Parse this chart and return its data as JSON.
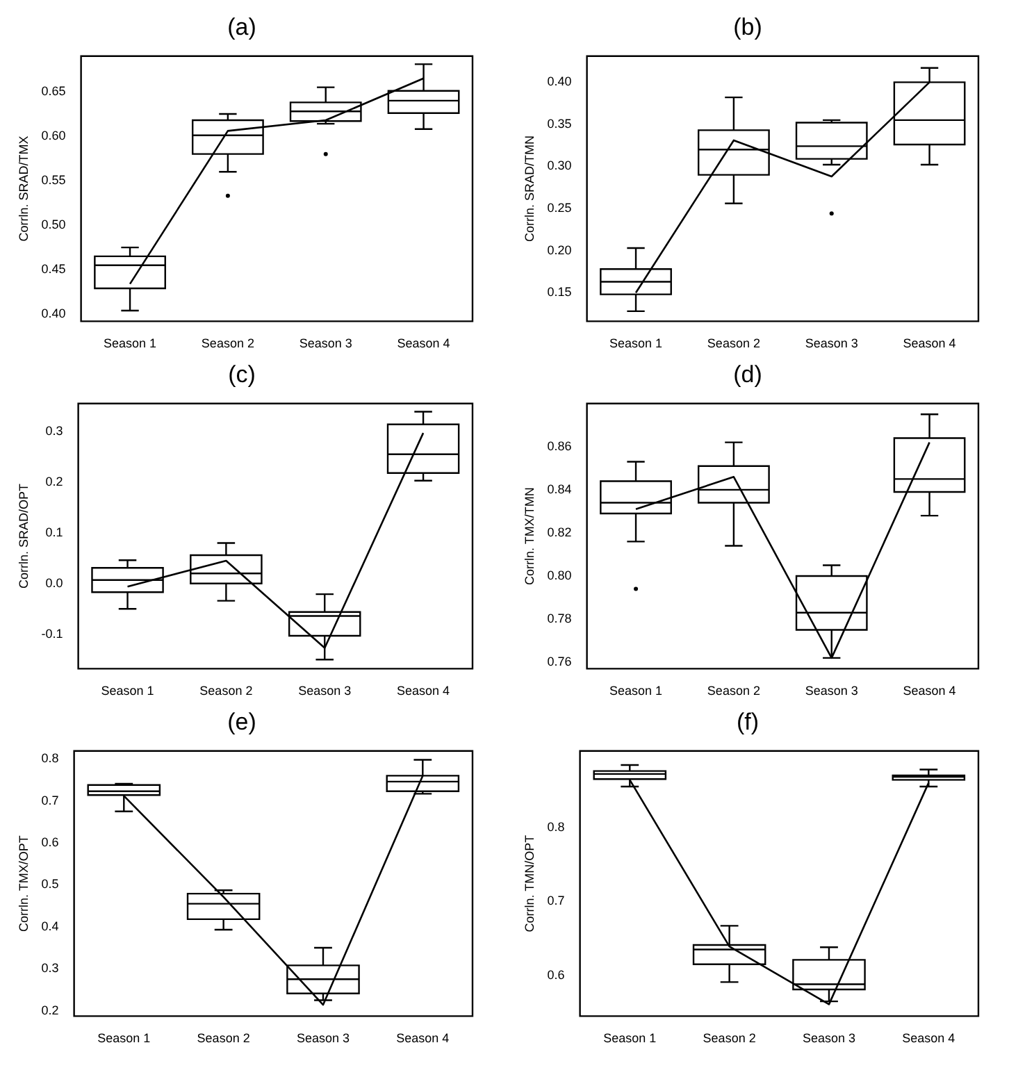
{
  "chart_data": [
    {
      "type": "box",
      "title": "(a)",
      "ylabel": "Corrln. SRAD/TMX",
      "categories": [
        "Season 1",
        "Season 2",
        "Season 3",
        "Season 4"
      ],
      "ylim": [
        0.392,
        0.69
      ],
      "yticks": [
        {
          "value": 0.4,
          "label": "0.40"
        },
        {
          "value": 0.45,
          "label": "0.45"
        },
        {
          "value": 0.5,
          "label": "0.50"
        },
        {
          "value": 0.55,
          "label": "0.55"
        },
        {
          "value": 0.6,
          "label": "0.60"
        },
        {
          "value": 0.65,
          "label": "0.65"
        }
      ],
      "series": [
        {
          "type": "box",
          "color": "#000000",
          "boxes": [
            {
              "low": 0.404,
              "q1": 0.429,
              "median": 0.455,
              "q3": 0.465,
              "high": 0.475
            },
            {
              "low": 0.56,
              "q1": 0.58,
              "median": 0.601,
              "q3": 0.618,
              "high": 0.625,
              "outliers": [
                0.533
              ]
            },
            {
              "low": 0.614,
              "q1": 0.617,
              "median": 0.628,
              "q3": 0.638,
              "high": 0.655,
              "outliers": [
                0.58
              ]
            },
            {
              "low": 0.608,
              "q1": 0.626,
              "median": 0.64,
              "q3": 0.651,
              "high": 0.681
            }
          ]
        },
        {
          "type": "line",
          "color": "#000000",
          "values": [
            0.434,
            0.606,
            0.618,
            0.665
          ]
        }
      ]
    },
    {
      "type": "box",
      "title": "(b)",
      "ylabel": "Corrln. SRAD/TMN",
      "categories": [
        "Season 1",
        "Season 2",
        "Season 3",
        "Season 4"
      ],
      "ylim": [
        0.116,
        0.431
      ],
      "yticks": [
        {
          "value": 0.15,
          "label": "0.15"
        },
        {
          "value": 0.2,
          "label": "0.20"
        },
        {
          "value": 0.25,
          "label": "0.25"
        },
        {
          "value": 0.3,
          "label": "0.30"
        },
        {
          "value": 0.35,
          "label": "0.35"
        },
        {
          "value": 0.4,
          "label": "0.40"
        }
      ],
      "series": [
        {
          "type": "box",
          "color": "#000000",
          "boxes": [
            {
              "low": 0.128,
              "q1": 0.148,
              "median": 0.163,
              "q3": 0.178,
              "high": 0.203
            },
            {
              "low": 0.256,
              "q1": 0.29,
              "median": 0.32,
              "q3": 0.343,
              "high": 0.382
            },
            {
              "low": 0.302,
              "q1": 0.309,
              "median": 0.324,
              "q3": 0.352,
              "high": 0.355,
              "outliers": [
                0.244
              ]
            },
            {
              "low": 0.302,
              "q1": 0.326,
              "median": 0.355,
              "q3": 0.4,
              "high": 0.417
            }
          ]
        },
        {
          "type": "line",
          "color": "#000000",
          "values": [
            0.15,
            0.331,
            0.288,
            0.4
          ]
        }
      ]
    },
    {
      "type": "box",
      "title": "(c)",
      "ylabel": "Corrln. SRAD/OPT",
      "categories": [
        "Season 1",
        "Season 2",
        "Season 3",
        "Season 4"
      ],
      "ylim": [
        -0.168,
        0.355
      ],
      "yticks": [
        {
          "value": -0.1,
          "label": "-0.1"
        },
        {
          "value": 0,
          "label": "0.0"
        },
        {
          "value": 0.1,
          "label": "0.1"
        },
        {
          "value": 0.2,
          "label": "0.2"
        },
        {
          "value": 0.3,
          "label": "0.3"
        }
      ],
      "series": [
        {
          "type": "box",
          "color": "#000000",
          "boxes": [
            {
              "low": -0.05,
              "q1": -0.017,
              "median": 0.007,
              "q3": 0.031,
              "high": 0.046
            },
            {
              "low": -0.034,
              "q1": 0,
              "median": 0.02,
              "q3": 0.056,
              "high": 0.08
            },
            {
              "low": -0.15,
              "q1": -0.103,
              "median": -0.064,
              "q3": -0.056,
              "high": -0.021
            },
            {
              "low": 0.203,
              "q1": 0.218,
              "median": 0.255,
              "q3": 0.314,
              "high": 0.339
            }
          ]
        },
        {
          "type": "line",
          "color": "#000000",
          "values": [
            -0.006,
            0.045,
            -0.127,
            0.297
          ]
        }
      ]
    },
    {
      "type": "box",
      "title": "(d)",
      "ylabel": "Corrln. TMX/TMN",
      "categories": [
        "Season 1",
        "Season 2",
        "Season 3",
        "Season 4"
      ],
      "ylim": [
        0.757,
        0.88
      ],
      "yticks": [
        {
          "value": 0.76,
          "label": "0.76"
        },
        {
          "value": 0.78,
          "label": "0.78"
        },
        {
          "value": 0.8,
          "label": "0.80"
        },
        {
          "value": 0.82,
          "label": "0.82"
        },
        {
          "value": 0.84,
          "label": "0.84"
        },
        {
          "value": 0.86,
          "label": "0.86"
        }
      ],
      "series": [
        {
          "type": "box",
          "color": "#000000",
          "boxes": [
            {
              "low": 0.816,
              "q1": 0.829,
              "median": 0.834,
              "q3": 0.844,
              "high": 0.853,
              "outliers": [
                0.794
              ]
            },
            {
              "low": 0.814,
              "q1": 0.834,
              "median": 0.84,
              "q3": 0.851,
              "high": 0.862
            },
            {
              "low": 0.762,
              "q1": 0.775,
              "median": 0.783,
              "q3": 0.8,
              "high": 0.805
            },
            {
              "low": 0.828,
              "q1": 0.839,
              "median": 0.845,
              "q3": 0.864,
              "high": 0.875
            }
          ]
        },
        {
          "type": "line",
          "color": "#000000",
          "values": [
            0.831,
            0.846,
            0.762,
            0.862
          ]
        }
      ]
    },
    {
      "type": "box",
      "title": "(e)",
      "ylabel": "Corrln. TMX/OPT",
      "categories": [
        "Season 1",
        "Season 2",
        "Season 3",
        "Season 4"
      ],
      "ylim": [
        0.187,
        0.819
      ],
      "yticks": [
        {
          "value": 0.2,
          "label": "0.2"
        },
        {
          "value": 0.3,
          "label": "0.3"
        },
        {
          "value": 0.4,
          "label": "0.4"
        },
        {
          "value": 0.5,
          "label": "0.5"
        },
        {
          "value": 0.6,
          "label": "0.6"
        },
        {
          "value": 0.7,
          "label": "0.7"
        },
        {
          "value": 0.8,
          "label": "0.8"
        }
      ],
      "series": [
        {
          "type": "box",
          "color": "#000000",
          "boxes": [
            {
              "low": 0.675,
              "q1": 0.714,
              "median": 0.723,
              "q3": 0.738,
              "high": 0.741
            },
            {
              "low": 0.393,
              "q1": 0.418,
              "median": 0.455,
              "q3": 0.479,
              "high": 0.487
            },
            {
              "low": 0.225,
              "q1": 0.241,
              "median": 0.275,
              "q3": 0.308,
              "high": 0.35
            },
            {
              "low": 0.717,
              "q1": 0.723,
              "median": 0.746,
              "q3": 0.76,
              "high": 0.798
            }
          ]
        },
        {
          "type": "line",
          "color": "#000000",
          "values": [
            0.712,
            0.471,
            0.214,
            0.76
          ]
        }
      ]
    },
    {
      "type": "box",
      "title": "(f)",
      "ylabel": "Corrln. TMN/OPT",
      "categories": [
        "Season 1",
        "Season 2",
        "Season 3",
        "Season 4"
      ],
      "ylim": [
        0.545,
        0.903
      ],
      "yticks": [
        {
          "value": 0.6,
          "label": "0.6"
        },
        {
          "value": 0.7,
          "label": "0.7"
        },
        {
          "value": 0.8,
          "label": "0.8"
        }
      ],
      "series": [
        {
          "type": "box",
          "color": "#000000",
          "boxes": [
            {
              "low": 0.855,
              "q1": 0.865,
              "median": 0.872,
              "q3": 0.876,
              "high": 0.884
            },
            {
              "low": 0.591,
              "q1": 0.615,
              "median": 0.635,
              "q3": 0.641,
              "high": 0.667
            },
            {
              "low": 0.565,
              "q1": 0.581,
              "median": 0.588,
              "q3": 0.621,
              "high": 0.638
            },
            {
              "low": 0.855,
              "q1": 0.864,
              "median": 0.868,
              "q3": 0.87,
              "high": 0.878
            }
          ]
        },
        {
          "type": "line",
          "color": "#000000",
          "values": [
            0.864,
            0.639,
            0.561,
            0.86
          ]
        }
      ]
    }
  ]
}
